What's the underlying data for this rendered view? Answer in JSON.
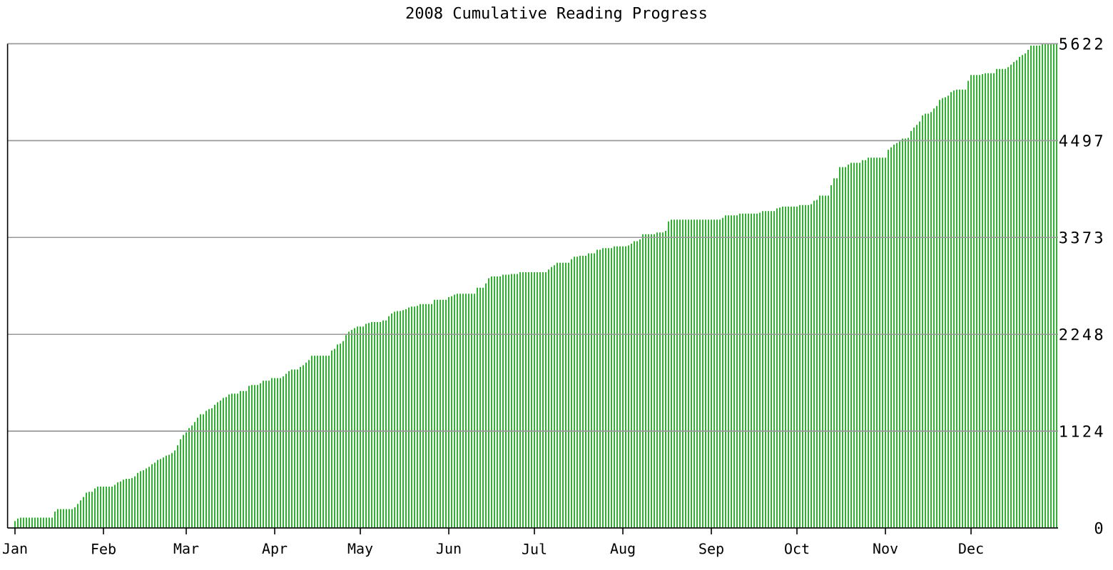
{
  "chart_data": {
    "type": "bar",
    "title": "2008 Cumulative Reading Progress",
    "categories": [
      "Jan",
      null,
      null,
      null,
      null,
      null,
      null,
      null,
      null,
      null,
      null,
      null,
      null,
      null,
      null,
      null,
      null,
      null,
      null,
      null,
      null,
      null,
      null,
      null,
      null,
      null,
      null,
      null,
      null,
      null,
      null,
      "Feb",
      null,
      null,
      null,
      null,
      null,
      null,
      null,
      null,
      null,
      null,
      null,
      null,
      null,
      null,
      null,
      null,
      null,
      null,
      null,
      null,
      null,
      null,
      null,
      null,
      null,
      null,
      null,
      null,
      "Mar",
      null,
      null,
      null,
      null,
      null,
      null,
      null,
      null,
      null,
      null,
      null,
      null,
      null,
      null,
      null,
      null,
      null,
      null,
      null,
      null,
      null,
      null,
      null,
      null,
      null,
      null,
      null,
      null,
      null,
      null,
      "Apr",
      null,
      null,
      null,
      null,
      null,
      null,
      null,
      null,
      null,
      null,
      null,
      null,
      null,
      null,
      null,
      null,
      null,
      null,
      null,
      null,
      null,
      null,
      null,
      null,
      null,
      null,
      null,
      null,
      null,
      "May",
      null,
      null,
      null,
      null,
      null,
      null,
      null,
      null,
      null,
      null,
      null,
      null,
      null,
      null,
      null,
      null,
      null,
      null,
      null,
      null,
      null,
      null,
      null,
      null,
      null,
      null,
      null,
      null,
      null,
      null,
      "Jun",
      null,
      null,
      null,
      null,
      null,
      null,
      null,
      null,
      null,
      null,
      null,
      null,
      null,
      null,
      null,
      null,
      null,
      null,
      null,
      null,
      null,
      null,
      null,
      null,
      null,
      null,
      null,
      null,
      null,
      "Jul",
      null,
      null,
      null,
      null,
      null,
      null,
      null,
      null,
      null,
      null,
      null,
      null,
      null,
      null,
      null,
      null,
      null,
      null,
      null,
      null,
      null,
      null,
      null,
      null,
      null,
      null,
      null,
      null,
      null,
      null,
      "Aug",
      null,
      null,
      null,
      null,
      null,
      null,
      null,
      null,
      null,
      null,
      null,
      null,
      null,
      null,
      null,
      null,
      null,
      null,
      null,
      null,
      null,
      null,
      null,
      null,
      null,
      null,
      null,
      null,
      null,
      null,
      "Sep",
      null,
      null,
      null,
      null,
      null,
      null,
      null,
      null,
      null,
      null,
      null,
      null,
      null,
      null,
      null,
      null,
      null,
      null,
      null,
      null,
      null,
      null,
      null,
      null,
      null,
      null,
      null,
      null,
      null,
      "Oct",
      null,
      null,
      null,
      null,
      null,
      null,
      null,
      null,
      null,
      null,
      null,
      null,
      null,
      null,
      null,
      null,
      null,
      null,
      null,
      null,
      null,
      null,
      null,
      null,
      null,
      null,
      null,
      null,
      null,
      null,
      "Nov",
      null,
      null,
      null,
      null,
      null,
      null,
      null,
      null,
      null,
      null,
      null,
      null,
      null,
      null,
      null,
      null,
      null,
      null,
      null,
      null,
      null,
      null,
      null,
      null,
      null,
      null,
      null,
      null,
      null,
      "Dec",
      null,
      null,
      null,
      null,
      null,
      null,
      null,
      null,
      null,
      null,
      null,
      null,
      null,
      null,
      null,
      null,
      null,
      null,
      null,
      null,
      null,
      null,
      null,
      null,
      null,
      null,
      null,
      null,
      null,
      null
    ],
    "values": [
      80,
      110,
      120,
      120,
      120,
      120,
      120,
      120,
      120,
      120,
      120,
      120,
      120,
      120,
      190,
      220,
      220,
      220,
      220,
      220,
      220,
      240,
      280,
      320,
      360,
      410,
      420,
      420,
      460,
      480,
      480,
      480,
      480,
      480,
      480,
      500,
      530,
      540,
      560,
      570,
      570,
      580,
      600,
      640,
      660,
      670,
      690,
      710,
      740,
      760,
      790,
      800,
      820,
      840,
      850,
      870,
      900,
      960,
      1030,
      1080,
      1110,
      1160,
      1190,
      1230,
      1280,
      1320,
      1320,
      1360,
      1380,
      1390,
      1430,
      1460,
      1480,
      1510,
      1520,
      1550,
      1560,
      1560,
      1560,
      1590,
      1590,
      1590,
      1650,
      1660,
      1660,
      1660,
      1680,
      1710,
      1710,
      1710,
      1740,
      1740,
      1740,
      1740,
      1760,
      1790,
      1820,
      1840,
      1840,
      1840,
      1870,
      1890,
      1920,
      1950,
      2000,
      2000,
      2000,
      2000,
      2000,
      2000,
      2000,
      2060,
      2080,
      2130,
      2140,
      2170,
      2240,
      2280,
      2300,
      2320,
      2340,
      2340,
      2340,
      2370,
      2380,
      2390,
      2390,
      2390,
      2390,
      2410,
      2410,
      2460,
      2490,
      2510,
      2520,
      2520,
      2530,
      2540,
      2560,
      2570,
      2570,
      2580,
      2600,
      2600,
      2600,
      2600,
      2600,
      2650,
      2650,
      2650,
      2650,
      2650,
      2680,
      2690,
      2710,
      2720,
      2720,
      2720,
      2720,
      2720,
      2720,
      2720,
      2790,
      2790,
      2790,
      2840,
      2900,
      2920,
      2920,
      2920,
      2920,
      2940,
      2940,
      2940,
      2950,
      2950,
      2950,
      2970,
      2970,
      2970,
      2970,
      2970,
      2970,
      2970,
      2970,
      2970,
      2970,
      3000,
      3030,
      3050,
      3080,
      3080,
      3080,
      3080,
      3080,
      3120,
      3150,
      3150,
      3160,
      3160,
      3160,
      3190,
      3190,
      3190,
      3230,
      3230,
      3250,
      3250,
      3250,
      3250,
      3270,
      3270,
      3270,
      3270,
      3270,
      3280,
      3300,
      3330,
      3330,
      3350,
      3410,
      3410,
      3410,
      3410,
      3410,
      3430,
      3430,
      3430,
      3450,
      3560,
      3580,
      3580,
      3580,
      3580,
      3580,
      3580,
      3580,
      3580,
      3580,
      3580,
      3580,
      3580,
      3580,
      3580,
      3580,
      3580,
      3580,
      3580,
      3600,
      3630,
      3630,
      3630,
      3630,
      3630,
      3650,
      3650,
      3650,
      3650,
      3650,
      3650,
      3650,
      3660,
      3680,
      3680,
      3680,
      3680,
      3680,
      3710,
      3720,
      3730,
      3730,
      3730,
      3730,
      3730,
      3730,
      3750,
      3750,
      3750,
      3750,
      3760,
      3800,
      3810,
      3860,
      3860,
      3860,
      3860,
      3980,
      4060,
      4060,
      4190,
      4190,
      4190,
      4220,
      4240,
      4240,
      4240,
      4240,
      4270,
      4270,
      4300,
      4300,
      4300,
      4300,
      4300,
      4300,
      4300,
      4390,
      4420,
      4450,
      4470,
      4490,
      4520,
      4520,
      4530,
      4610,
      4650,
      4680,
      4720,
      4790,
      4810,
      4810,
      4830,
      4870,
      4900,
      4970,
      4990,
      5000,
      5020,
      5060,
      5080,
      5090,
      5090,
      5090,
      5090,
      5190,
      5260,
      5260,
      5260,
      5260,
      5270,
      5280,
      5280,
      5280,
      5280,
      5330,
      5330,
      5330,
      5330,
      5350,
      5380,
      5410,
      5430,
      5470,
      5490,
      5510,
      5550,
      5600,
      5600,
      5600,
      5600,
      5620,
      5620,
      5620,
      5620,
      5620,
      5620
    ],
    "color": "#30b030",
    "ylim": [
      0,
      5622
    ],
    "yticks": [
      0,
      1124,
      2248,
      3373,
      4497,
      5622
    ],
    "grid": "y"
  }
}
